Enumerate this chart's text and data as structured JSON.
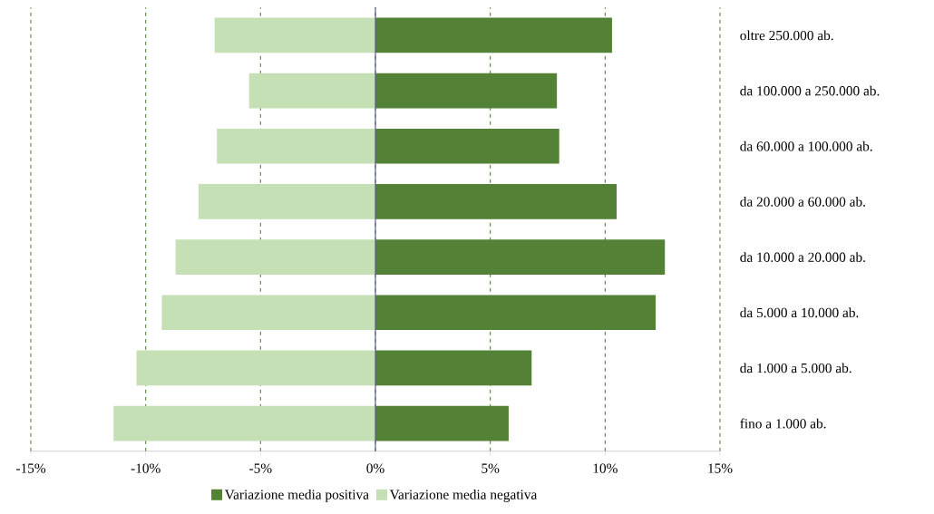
{
  "chart_data": {
    "type": "bar",
    "orientation": "horizontal",
    "stacked": true,
    "categories": [
      "oltre 250.000 ab.",
      "da 100.000 a 250.000 ab.",
      "da 60.000 a 100.000 ab.",
      "da 20.000 a 60.000 ab.",
      "da 10.000 a 20.000 ab.",
      "da 5.000 a 10.000 ab.",
      "da 1.000 a 5.000 ab.",
      "fino a 1.000 ab."
    ],
    "series": [
      {
        "name": "Variazione media positiva",
        "color": "#538135",
        "values": [
          10.3,
          7.9,
          8.0,
          10.5,
          12.6,
          12.2,
          6.8,
          5.8
        ]
      },
      {
        "name": "Variazione media negativa",
        "color": "#c5e0b4",
        "values": [
          -7.0,
          -5.5,
          -6.9,
          -7.7,
          -8.7,
          -9.3,
          -10.4,
          -11.4
        ]
      }
    ],
    "xlim": [
      -15,
      15
    ],
    "xticks": [
      {
        "value": -15,
        "label": "-15%"
      },
      {
        "value": -10,
        "label": "-10%"
      },
      {
        "value": -5,
        "label": "-5%"
      },
      {
        "value": 0,
        "label": "0%"
      },
      {
        "value": 5,
        "label": "5%"
      },
      {
        "value": 10,
        "label": "10%"
      },
      {
        "value": 15,
        "label": "15%"
      }
    ],
    "ref_lines": [
      {
        "axis": "x",
        "value": 0,
        "color": "#5a5f8c"
      }
    ],
    "grid": "x",
    "legend": "bottom"
  }
}
